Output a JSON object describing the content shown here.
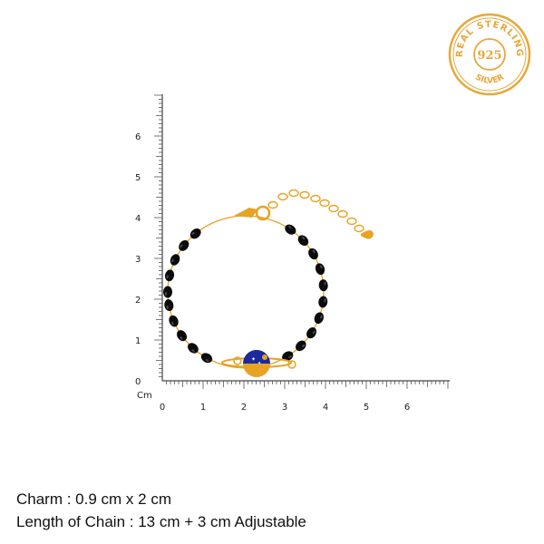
{
  "badge": {
    "top_text": "REAL STERLING",
    "center_text": "925",
    "bottom_text": "SILVER",
    "color": "#e8a73a"
  },
  "ruler": {
    "unit_label": "Cm",
    "y_ticks": [
      "0",
      "1",
      "2",
      "3",
      "4",
      "5",
      "6"
    ],
    "x_ticks": [
      "0",
      "1",
      "2",
      "3",
      "4",
      "5",
      "6"
    ]
  },
  "product": {
    "name": "bracelet",
    "bead_color": "#0b0b0b",
    "gold_color": "#e7a325",
    "charm_color": "#1a2a9c"
  },
  "specs": [
    "Charm : 0.9 cm x 2 cm",
    "Length of Chain : 13 cm + 3 cm Adjustable"
  ]
}
